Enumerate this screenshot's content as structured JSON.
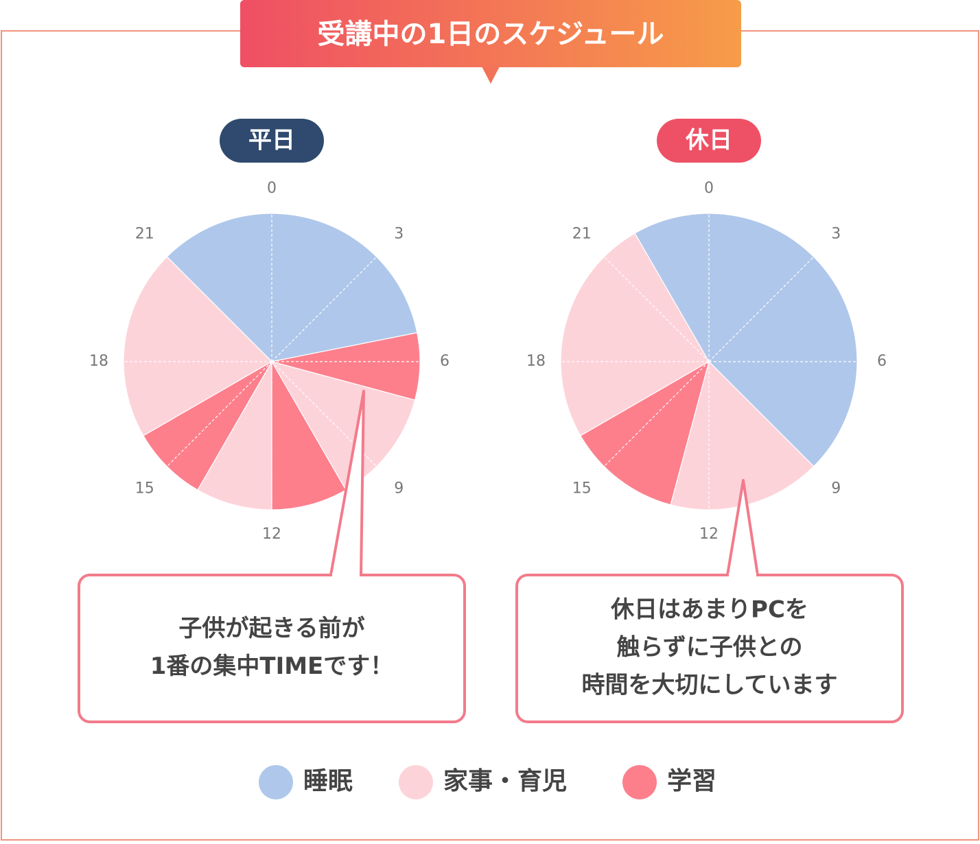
{
  "title": "受講中の1日のスケジュール",
  "legend": [
    {
      "name": "睡眠",
      "color": "#afc7ea"
    },
    {
      "name": "家事・育児",
      "color": "#fdd3da"
    },
    {
      "name": "学習",
      "color": "#fd7f8c"
    }
  ],
  "chart_data": [
    {
      "type": "pie",
      "label": "平日",
      "label_color": "#2f4a6e",
      "ticks": [
        0,
        3,
        6,
        9,
        12,
        15,
        18,
        21
      ],
      "series": [
        {
          "segments": [
            {
              "start": 21,
              "hours": 8.25
            }
          ]
        },
        {
          "segments": [
            {
              "start": 7,
              "hours": 3
            },
            {
              "start": 12,
              "hours": 2
            },
            {
              "start": 16,
              "hours": 5
            }
          ]
        },
        {
          "segments": [
            {
              "start": 5.25,
              "hours": 1.75
            },
            {
              "start": 10,
              "hours": 2
            },
            {
              "start": 14,
              "hours": 2
            }
          ]
        }
      ],
      "callout": [
        "子供が起きる前が",
        "1番の集中TIMEです！"
      ]
    },
    {
      "type": "pie",
      "label": "休日",
      "label_color": "#ee5165",
      "ticks": [
        0,
        3,
        6,
        9,
        12,
        15,
        18,
        21
      ],
      "series": [
        {
          "segments": [
            {
              "start": 22,
              "hours": 11
            }
          ]
        },
        {
          "segments": [
            {
              "start": 9,
              "hours": 4
            },
            {
              "start": 16,
              "hours": 6
            }
          ]
        },
        {
          "segments": [
            {
              "start": 13,
              "hours": 3
            }
          ]
        }
      ],
      "callout": [
        "休日はあまりPCを",
        "触らずに子供との",
        "時間を大切にしています"
      ]
    }
  ]
}
